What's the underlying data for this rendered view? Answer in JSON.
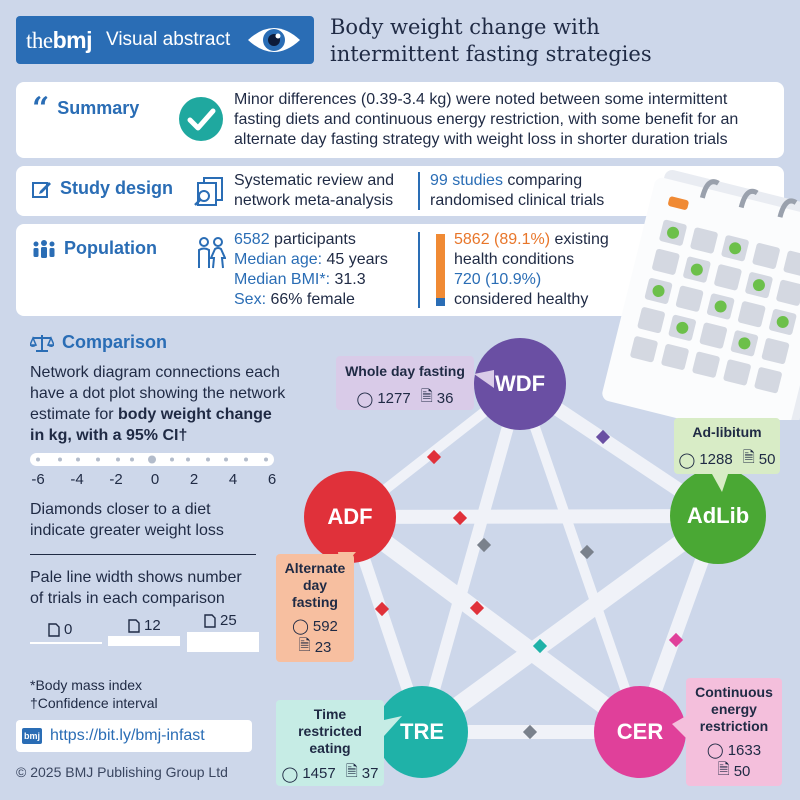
{
  "header": {
    "logo_prefix": "the",
    "logo_bold": "bmj",
    "badge_label": "Visual abstract",
    "title_line1": "Body weight change with",
    "title_line2": "intermittent fasting strategies"
  },
  "summary": {
    "label": "Summary",
    "line1": "Minor differences (0.39-3.4 kg) were noted between some intermittent",
    "line2": "fasting diets and continuous energy restriction, with some benefit for an",
    "line3": "alternate day fasting strategy with weight loss in shorter duration trials"
  },
  "study_design": {
    "label": "Study design",
    "design_line1": "Systematic review and",
    "design_line2": "network meta-analysis",
    "studies_count": "99 studies",
    "studies_rest": " comparing",
    "studies_line2": "randomised clinical trials"
  },
  "population": {
    "label": "Population",
    "participants_num": "6582",
    "participants_rest": " participants",
    "age_label": "Median age:",
    "age_value": " 45 years",
    "bmi_label": "Median BMI*:",
    "bmi_value": " 31.3",
    "sex_label": "Sex:",
    "sex_value": " 66% female",
    "existing_num": "5862 (89.1%)",
    "existing_rest": " existing",
    "existing_line2": "health conditions",
    "healthy_num": "720 (10.9%)",
    "healthy_line2": "considered healthy",
    "existing_fraction": 0.891,
    "existing_color": "#f08a34",
    "healthy_color": "#2a6db5"
  },
  "comparison": {
    "label": "Comparison",
    "desc_line1": "Network diagram connections each",
    "desc_line2": "have a dot plot showing the network",
    "desc_line3_plain": "estimate for ",
    "desc_line3_bold": "body weight change",
    "desc_line4": "in kg, with a 95% CI†",
    "axis_ticks": [
      "-6",
      "-4",
      "-2",
      "0",
      "2",
      "4",
      "6"
    ],
    "diamond_line1": "Diamonds closer to a diet",
    "diamond_line2": "indicate greater weight loss",
    "width_line1": "Pale line width shows number",
    "width_line2": "of trials in each comparison",
    "width_legend": [
      "0",
      "12",
      "25"
    ]
  },
  "footnotes": {
    "bmi": "*Body mass index",
    "ci": "†Confidence interval"
  },
  "link": {
    "icon_text": "bmj",
    "url": "https://bit.ly/bmj-infast"
  },
  "copyright": "© 2025 BMJ Publishing Group Ltd",
  "nodes": {
    "wdf": {
      "label": "WDF",
      "color": "#6a4fa3",
      "callout_title": "Whole day fasting",
      "participants": "1277",
      "trials": "36",
      "callout_color": "#d9cbe8"
    },
    "adlib": {
      "label": "AdLib",
      "color": "#4aa834",
      "callout_title": "Ad-libitum",
      "participants": "1288",
      "trials": "50",
      "callout_color": "#d8ecc6"
    },
    "adf": {
      "label": "ADF",
      "color": "#e0313a",
      "callout_title_l1": "Alternate",
      "callout_title_l2": "day",
      "callout_title_l3": "fasting",
      "participants": "592",
      "trials": "23",
      "callout_color": "#f7bfa0"
    },
    "tre": {
      "label": "TRE",
      "color": "#1fb2a8",
      "callout_title_l1": "Time",
      "callout_title_l2": "restricted",
      "callout_title_l3": "eating",
      "participants": "1457",
      "trials": "37",
      "callout_color": "#c6ece5"
    },
    "cer": {
      "label": "CER",
      "color": "#e0409a",
      "callout_title_l1": "Continuous",
      "callout_title_l2": "energy",
      "callout_title_l3": "restriction",
      "participants": "1633",
      "trials": "50",
      "callout_color": "#f4bfdc"
    }
  }
}
